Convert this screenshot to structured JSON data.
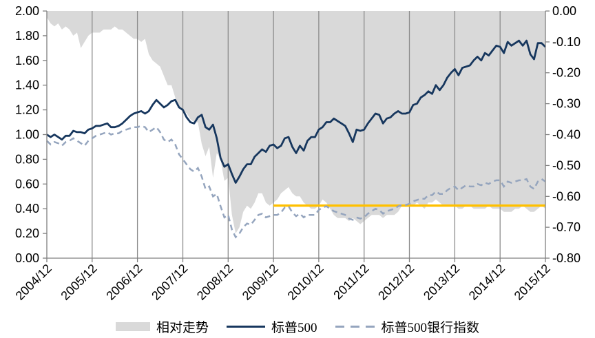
{
  "chart_data": {
    "type": "area+line combo",
    "title": "",
    "x_tick_labels": [
      "2004/12",
      "2005/12",
      "2006/12",
      "2007/12",
      "2008/12",
      "2009/12",
      "2010/12",
      "2011/12",
      "2012/12",
      "2013/12",
      "2014/12",
      "2015/12"
    ],
    "x_frequency": "monthly",
    "left_axis": {
      "min": 0.0,
      "max": 2.0,
      "step": 0.2,
      "labels": [
        "0.00",
        "0.20",
        "0.40",
        "0.60",
        "0.80",
        "1.00",
        "1.20",
        "1.40",
        "1.60",
        "1.80",
        "2.00"
      ]
    },
    "right_axis": {
      "min": -0.8,
      "max": 0.0,
      "step": 0.1,
      "labels": [
        "0.00",
        "-0.10",
        "-0.20",
        "-0.30",
        "-0.40",
        "-0.50",
        "-0.60",
        "-0.70",
        "-0.80"
      ]
    },
    "grid": "vertical-only",
    "legend_position": "bottom-center",
    "series": [
      {
        "name": "相对走势",
        "type": "area",
        "axis": "right",
        "color": "#D9D9D9",
        "values": [
          -0.02,
          -0.04,
          -0.05,
          -0.04,
          -0.06,
          -0.05,
          -0.06,
          -0.08,
          -0.07,
          -0.12,
          -0.1,
          -0.08,
          -0.07,
          -0.07,
          -0.07,
          -0.06,
          -0.06,
          -0.06,
          -0.05,
          -0.06,
          -0.06,
          -0.07,
          -0.08,
          -0.09,
          -0.09,
          -0.1,
          -0.09,
          -0.14,
          -0.16,
          -0.17,
          -0.18,
          -0.21,
          -0.24,
          -0.24,
          -0.28,
          -0.31,
          -0.33,
          -0.33,
          -0.35,
          -0.36,
          -0.36,
          -0.43,
          -0.47,
          -0.44,
          -0.54,
          -0.46,
          -0.48,
          -0.55,
          -0.54,
          -0.66,
          -0.72,
          -0.7,
          -0.65,
          -0.63,
          -0.64,
          -0.62,
          -0.59,
          -0.59,
          -0.62,
          -0.63,
          -0.62,
          -0.61,
          -0.59,
          -0.58,
          -0.57,
          -0.59,
          -0.6,
          -0.6,
          -0.62,
          -0.63,
          -0.64,
          -0.64,
          -0.63,
          -0.61,
          -0.62,
          -0.64,
          -0.66,
          -0.67,
          -0.67,
          -0.67,
          -0.68,
          -0.67,
          -0.68,
          -0.69,
          -0.68,
          -0.67,
          -0.66,
          -0.66,
          -0.66,
          -0.67,
          -0.66,
          -0.66,
          -0.66,
          -0.65,
          -0.63,
          -0.63,
          -0.63,
          -0.63,
          -0.62,
          -0.63,
          -0.64,
          -0.62,
          -0.62,
          -0.61,
          -0.62,
          -0.63,
          -0.63,
          -0.63,
          -0.63,
          -0.64,
          -0.64,
          -0.63,
          -0.63,
          -0.64,
          -0.64,
          -0.64,
          -0.64,
          -0.63,
          -0.64,
          -0.64,
          -0.64,
          -0.65,
          -0.65,
          -0.65,
          -0.64,
          -0.64,
          -0.63,
          -0.64,
          -0.65,
          -0.65,
          -0.64,
          -0.63,
          -0.64
        ]
      },
      {
        "name": "标普500",
        "type": "line",
        "axis": "left",
        "color": "#17375E",
        "values": [
          1.0,
          0.98,
          1.0,
          0.98,
          0.96,
          0.99,
          0.99,
          1.03,
          1.02,
          1.02,
          1.01,
          1.04,
          1.05,
          1.07,
          1.07,
          1.08,
          1.09,
          1.06,
          1.06,
          1.07,
          1.09,
          1.12,
          1.15,
          1.17,
          1.18,
          1.19,
          1.17,
          1.19,
          1.24,
          1.28,
          1.25,
          1.22,
          1.24,
          1.27,
          1.28,
          1.22,
          1.2,
          1.14,
          1.1,
          1.09,
          1.14,
          1.16,
          1.06,
          1.04,
          1.08,
          0.97,
          0.81,
          0.74,
          0.76,
          0.68,
          0.61,
          0.66,
          0.72,
          0.76,
          0.76,
          0.82,
          0.85,
          0.88,
          0.86,
          0.91,
          0.92,
          0.89,
          0.91,
          0.97,
          0.98,
          0.9,
          0.85,
          0.91,
          0.87,
          0.95,
          0.98,
          0.98,
          1.04,
          1.06,
          1.1,
          1.1,
          1.13,
          1.11,
          1.09,
          1.07,
          1.01,
          0.94,
          1.04,
          1.03,
          1.04,
          1.09,
          1.13,
          1.17,
          1.16,
          1.09,
          1.13,
          1.14,
          1.17,
          1.19,
          1.17,
          1.17,
          1.18,
          1.24,
          1.25,
          1.3,
          1.32,
          1.35,
          1.33,
          1.4,
          1.36,
          1.4,
          1.46,
          1.5,
          1.53,
          1.48,
          1.54,
          1.55,
          1.56,
          1.6,
          1.63,
          1.6,
          1.66,
          1.64,
          1.68,
          1.72,
          1.71,
          1.66,
          1.75,
          1.72,
          1.74,
          1.76,
          1.72,
          1.76,
          1.65,
          1.61,
          1.74,
          1.74,
          1.71
        ]
      },
      {
        "name": "标普500银行指数",
        "type": "line",
        "dashed": true,
        "axis": "left",
        "color": "#95A5BE",
        "values": [
          0.95,
          0.92,
          0.94,
          0.93,
          0.91,
          0.94,
          0.95,
          0.97,
          0.95,
          0.93,
          0.91,
          0.95,
          0.97,
          0.99,
          1.0,
          1.01,
          1.02,
          1.0,
          1.01,
          1.01,
          1.03,
          1.04,
          1.05,
          1.06,
          1.06,
          1.07,
          1.06,
          1.02,
          1.04,
          1.06,
          1.02,
          0.96,
          0.94,
          0.96,
          0.92,
          0.84,
          0.8,
          0.76,
          0.72,
          0.7,
          0.73,
          0.66,
          0.56,
          0.58,
          0.5,
          0.52,
          0.42,
          0.33,
          0.35,
          0.23,
          0.17,
          0.2,
          0.25,
          0.28,
          0.27,
          0.31,
          0.35,
          0.36,
          0.33,
          0.34,
          0.35,
          0.35,
          0.37,
          0.41,
          0.42,
          0.37,
          0.34,
          0.36,
          0.33,
          0.35,
          0.35,
          0.35,
          0.39,
          0.41,
          0.42,
          0.4,
          0.38,
          0.37,
          0.36,
          0.35,
          0.32,
          0.31,
          0.33,
          0.32,
          0.33,
          0.36,
          0.38,
          0.4,
          0.39,
          0.36,
          0.38,
          0.39,
          0.4,
          0.42,
          0.43,
          0.43,
          0.44,
          0.46,
          0.47,
          0.48,
          0.48,
          0.51,
          0.51,
          0.54,
          0.52,
          0.52,
          0.55,
          0.57,
          0.58,
          0.55,
          0.57,
          0.59,
          0.58,
          0.58,
          0.6,
          0.59,
          0.61,
          0.6,
          0.62,
          0.63,
          0.63,
          0.58,
          0.62,
          0.61,
          0.62,
          0.63,
          0.63,
          0.64,
          0.58,
          0.56,
          0.62,
          0.64,
          0.62
        ]
      }
    ],
    "reference_line": {
      "name": "reference-line",
      "axis": "right",
      "value": -0.63,
      "x_start": "2009/12",
      "x_end": "2015/12",
      "start_index": 60,
      "end_index": 132,
      "color": "#FFC000"
    },
    "legend": [
      {
        "label": "相对走势",
        "swatch": "area",
        "color": "#D9D9D9"
      },
      {
        "label": "标普500",
        "swatch": "line",
        "color": "#17375E"
      },
      {
        "label": "标普500银行指数",
        "swatch": "dashed",
        "color": "#95A5BE"
      }
    ]
  },
  "colors": {
    "area": "#D9D9D9",
    "sp500": "#17375E",
    "bank_index": "#95A5BE",
    "reference": "#FFC000",
    "gridline": "#8C8C8C",
    "axis": "#808080",
    "text": "#000000",
    "background": "#FFFFFF"
  }
}
